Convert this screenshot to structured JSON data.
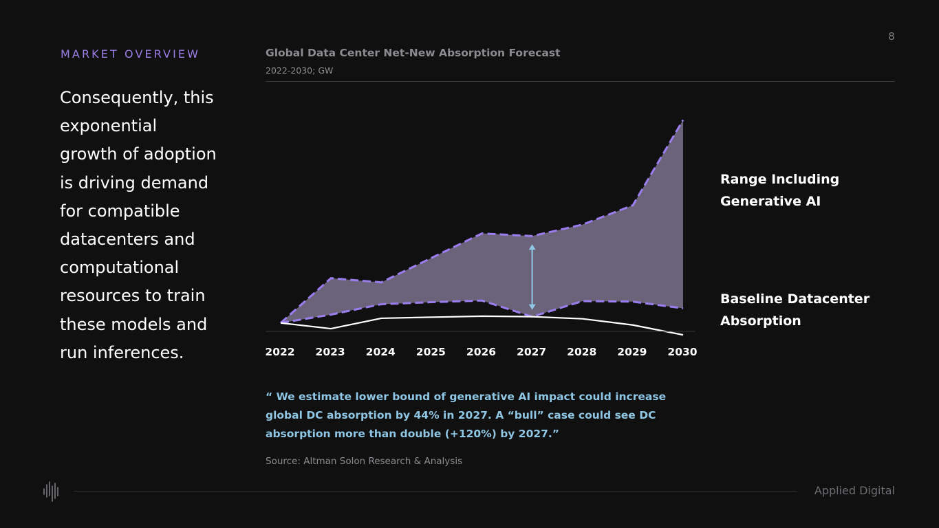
{
  "page": {
    "number": "8",
    "section_label": "MARKET OVERVIEW",
    "body_text": "Consequently, this exponential growth of adoption is driving demand for compatible datacenters and computational resources to train these models and run inferences.",
    "quote": "“ We estimate lower bound of generative AI impact could increase global DC absorption by 44% in 2027. A “bull” case could see DC absorption more than double (+120%) by 2027.”",
    "source": "Source: Altman Solon Research & Analysis",
    "brand": "Applied Digital",
    "logo_icon": "applied-digital-bars-logo"
  },
  "chart_data": {
    "type": "area",
    "title": "Global Data Center Net-New Absorption Forecast",
    "subtitle": "2022-2030; GW",
    "categories": [
      "2022",
      "2023",
      "2024",
      "2025",
      "2026",
      "2027",
      "2028",
      "2029",
      "2030"
    ],
    "series": [
      {
        "name": "Range Including Generative AI",
        "role": "range-upper",
        "values": [
          1.0,
          9.6,
          8.8,
          13.5,
          18.2,
          17.7,
          19.9,
          23.6,
          40.0
        ]
      },
      {
        "name": "Range Including Generative AI",
        "role": "range-lower",
        "values": [
          1.0,
          2.6,
          4.6,
          5.0,
          5.3,
          2.2,
          5.2,
          5.1,
          3.8
        ]
      },
      {
        "name": "Baseline Datacenter Absorption",
        "role": "baseline",
        "values": [
          1.0,
          -0.1,
          1.9,
          2.1,
          2.3,
          2.2,
          1.8,
          0.6,
          -1.3
        ]
      }
    ],
    "ylim": [
      -3,
      41
    ],
    "grid": false,
    "legend_position": "right",
    "annotation": "double-headed arrow at 2027 spanning the range",
    "colors": {
      "range_fill": "#6b6379",
      "range_border": "#9b7df0",
      "baseline": "#ffffff",
      "arrow": "#8fc6e4",
      "axis": "#3a3a3e"
    }
  }
}
